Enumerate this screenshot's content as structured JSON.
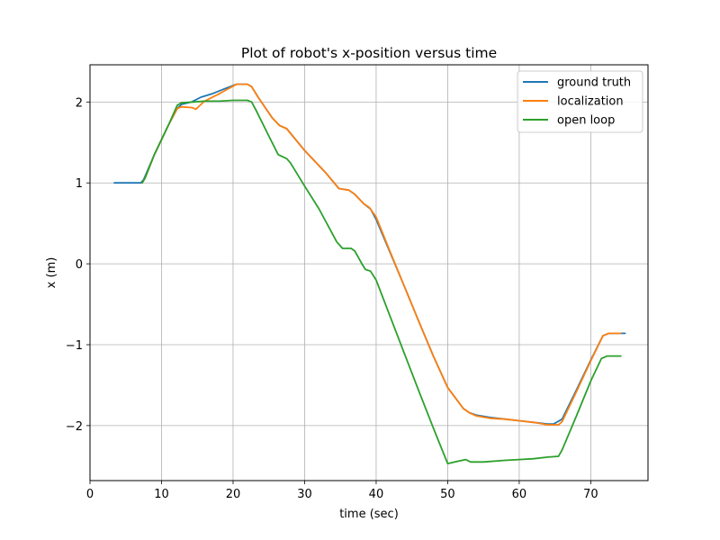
{
  "chart_data": {
    "type": "line",
    "title": "Plot of robot's x-position versus time",
    "xlabel": "time (sec)",
    "ylabel": "x (m)",
    "xlim": [
      0,
      78
    ],
    "ylim": [
      -2.68,
      2.46
    ],
    "xticks": [
      0,
      10,
      20,
      30,
      40,
      50,
      60,
      70
    ],
    "yticks": [
      -2,
      -1,
      0,
      1,
      2
    ],
    "ytick_labels": [
      "−2",
      "−1",
      "0",
      "1",
      "2"
    ],
    "grid": true,
    "legend_position": "upper-right",
    "series": [
      {
        "name": "ground truth",
        "color": "#1f77b4",
        "x": [
          3.4,
          7.1,
          7.5,
          9,
          11,
          12.2,
          12.8,
          14.2,
          15.5,
          17,
          19,
          20.5,
          22,
          22.6,
          23.5,
          25.5,
          26.5,
          27.5,
          30,
          33,
          34.8,
          36.2,
          37,
          38.3,
          39.2,
          40,
          42,
          44,
          46,
          48,
          50,
          52.2,
          53,
          54,
          56,
          58,
          60,
          62,
          64,
          64.8,
          66,
          68,
          70,
          71.7,
          72.5,
          74.8
        ],
        "y": [
          1.0,
          1.0,
          1.04,
          1.35,
          1.72,
          1.92,
          1.97,
          2.0,
          2.06,
          2.1,
          2.17,
          2.22,
          2.22,
          2.19,
          2.06,
          1.8,
          1.71,
          1.67,
          1.4,
          1.12,
          0.93,
          0.91,
          0.86,
          0.74,
          0.68,
          0.55,
          0.13,
          -0.29,
          -0.72,
          -1.14,
          -1.53,
          -1.79,
          -1.84,
          -1.87,
          -1.9,
          -1.92,
          -1.94,
          -1.96,
          -1.98,
          -1.98,
          -1.92,
          -1.56,
          -1.19,
          -0.89,
          -0.86,
          -0.86
        ]
      },
      {
        "name": "localization",
        "color": "#ff7f0e",
        "x": [
          7.3,
          7.7,
          9,
          11,
          12.2,
          12.8,
          14.3,
          14.8,
          16,
          18,
          20.5,
          22,
          22.6,
          23.5,
          25.5,
          26.5,
          27.5,
          30,
          33,
          34.8,
          36.2,
          37,
          38.3,
          39,
          40,
          42,
          44,
          46,
          48,
          50,
          52.2,
          53,
          54,
          56,
          58,
          60,
          62,
          64,
          65.5,
          66,
          68,
          70,
          71.7,
          72.5,
          74.2
        ],
        "y": [
          1.0,
          1.06,
          1.35,
          1.72,
          1.92,
          1.94,
          1.93,
          1.91,
          2.01,
          2.1,
          2.22,
          2.22,
          2.19,
          2.06,
          1.8,
          1.71,
          1.67,
          1.4,
          1.12,
          0.93,
          0.91,
          0.86,
          0.74,
          0.7,
          0.58,
          0.14,
          -0.29,
          -0.72,
          -1.14,
          -1.53,
          -1.79,
          -1.84,
          -1.88,
          -1.91,
          -1.92,
          -1.94,
          -1.96,
          -1.99,
          -1.99,
          -1.95,
          -1.58,
          -1.2,
          -0.89,
          -0.86,
          -0.86
        ]
      },
      {
        "name": "open loop",
        "color": "#2ca02c",
        "x": [
          7.3,
          7.7,
          9,
          11,
          12.2,
          12.8,
          14.5,
          16,
          18,
          20,
          22,
          22.6,
          23.2,
          25,
          26.3,
          27.5,
          28,
          30,
          32,
          34.5,
          35.3,
          36.5,
          37,
          38,
          38.5,
          39.2,
          40,
          42,
          44,
          46,
          48,
          50,
          52.5,
          53.2,
          55,
          58,
          60,
          62,
          64,
          65.5,
          66,
          68,
          70,
          71.5,
          72.3,
          74.2
        ],
        "y": [
          1.0,
          1.06,
          1.35,
          1.72,
          1.96,
          1.99,
          2.0,
          2.01,
          2.01,
          2.02,
          2.02,
          2.0,
          1.9,
          1.58,
          1.35,
          1.3,
          1.25,
          0.96,
          0.68,
          0.27,
          0.19,
          0.19,
          0.16,
          0.0,
          -0.07,
          -0.09,
          -0.2,
          -0.66,
          -1.12,
          -1.58,
          -2.03,
          -2.47,
          -2.42,
          -2.45,
          -2.45,
          -2.43,
          -2.42,
          -2.41,
          -2.39,
          -2.38,
          -2.3,
          -1.88,
          -1.45,
          -1.17,
          -1.14,
          -1.14
        ]
      }
    ]
  }
}
